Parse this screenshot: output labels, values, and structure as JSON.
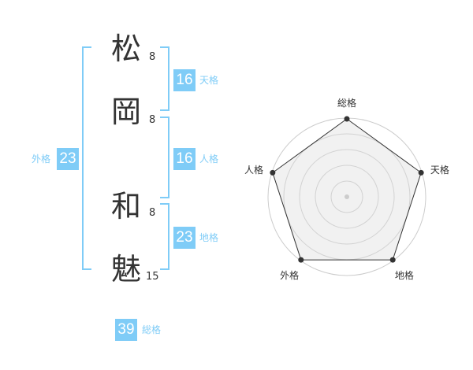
{
  "name": [
    {
      "char": "松",
      "strokes": "8"
    },
    {
      "char": "岡",
      "strokes": "8"
    },
    {
      "char": "和",
      "strokes": "8"
    },
    {
      "char": "魅",
      "strokes": "15"
    }
  ],
  "kaku": {
    "tenkaku": {
      "value": "16",
      "label": "天格"
    },
    "jinkaku": {
      "value": "16",
      "label": "人格"
    },
    "chikaku": {
      "value": "23",
      "label": "地格"
    },
    "gaikaku": {
      "value": "23",
      "label": "外格"
    },
    "soukaku": {
      "value": "39",
      "label": "総格"
    }
  },
  "accent_color": "#7fccf7",
  "chart_data": {
    "type": "radar",
    "axes": [
      "総格",
      "天格",
      "地格",
      "外格",
      "人格"
    ],
    "values": [
      5,
      5,
      5,
      5,
      5
    ],
    "scale_max": 5,
    "rings": 5
  }
}
